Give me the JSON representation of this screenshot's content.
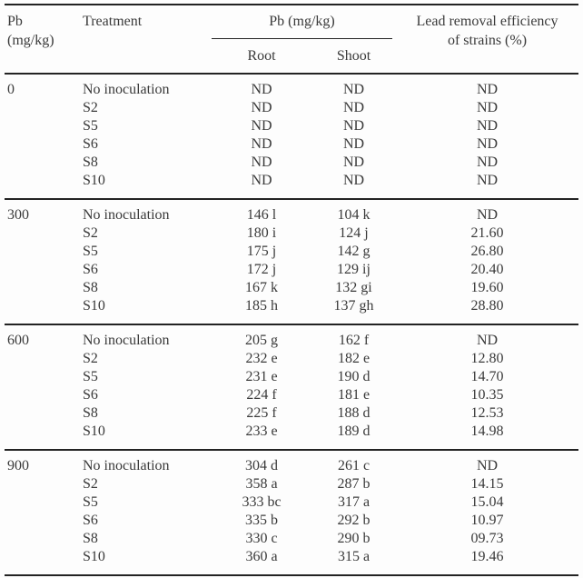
{
  "table": {
    "header": {
      "pb_level_line1": "Pb",
      "pb_level_line2": "(mg/kg)",
      "treatment": "Treatment",
      "pb_tissue_span": "Pb (mg/kg)",
      "root": "Root",
      "shoot": "Shoot",
      "efficiency_line1": "Lead removal efficiency",
      "efficiency_line2": "of strains (%)"
    },
    "groups": [
      {
        "pb": "0",
        "rows": [
          {
            "treatment": "No inoculation",
            "root": "ND",
            "shoot": "ND",
            "eff": "ND"
          },
          {
            "treatment": "S2",
            "root": "ND",
            "shoot": "ND",
            "eff": "ND"
          },
          {
            "treatment": "S5",
            "root": "ND",
            "shoot": "ND",
            "eff": "ND"
          },
          {
            "treatment": "S6",
            "root": "ND",
            "shoot": "ND",
            "eff": "ND"
          },
          {
            "treatment": "S8",
            "root": "ND",
            "shoot": "ND",
            "eff": "ND"
          },
          {
            "treatment": "S10",
            "root": "ND",
            "shoot": "ND",
            "eff": "ND"
          }
        ]
      },
      {
        "pb": "300",
        "rows": [
          {
            "treatment": "No inoculation",
            "root": "146 l",
            "shoot": "104 k",
            "eff": "ND"
          },
          {
            "treatment": "S2",
            "root": "180 i",
            "shoot": "124 j",
            "eff": "21.60"
          },
          {
            "treatment": "S5",
            "root": "175 j",
            "shoot": "142 g",
            "eff": "26.80"
          },
          {
            "treatment": "S6",
            "root": "172 j",
            "shoot": "129 ij",
            "eff": "20.40"
          },
          {
            "treatment": "S8",
            "root": "167 k",
            "shoot": "132 gi",
            "eff": "19.60"
          },
          {
            "treatment": "S10",
            "root": "185 h",
            "shoot": "137 gh",
            "eff": "28.80"
          }
        ]
      },
      {
        "pb": "600",
        "rows": [
          {
            "treatment": "No inoculation",
            "root": "205 g",
            "shoot": "162 f",
            "eff": "ND"
          },
          {
            "treatment": "S2",
            "root": "232 e",
            "shoot": "182 e",
            "eff": "12.80"
          },
          {
            "treatment": "S5",
            "root": "231 e",
            "shoot": "190 d",
            "eff": "14.70"
          },
          {
            "treatment": "S6",
            "root": "224 f",
            "shoot": "181 e",
            "eff": "10.35"
          },
          {
            "treatment": "S8",
            "root": "225 f",
            "shoot": "188 d",
            "eff": "12.53"
          },
          {
            "treatment": "S10",
            "root": "233 e",
            "shoot": "189 d",
            "eff": "14.98"
          }
        ]
      },
      {
        "pb": "900",
        "rows": [
          {
            "treatment": "No inoculation",
            "root": "304 d",
            "shoot": "261 c",
            "eff": "ND"
          },
          {
            "treatment": "S2",
            "root": "358 a",
            "shoot": "287 b",
            "eff": "14.15"
          },
          {
            "treatment": "S5",
            "root": "333 bc",
            "shoot": "317 a",
            "eff": "15.04"
          },
          {
            "treatment": "S6",
            "root": "335 b",
            "shoot": "292 b",
            "eff": "10.97"
          },
          {
            "treatment": "S8",
            "root": "330 c",
            "shoot": "290 b",
            "eff": "09.73"
          },
          {
            "treatment": "S10",
            "root": "360 a",
            "shoot": "315 a",
            "eff": "19.46"
          }
        ]
      }
    ],
    "colors": {
      "text": "#3a3a3a",
      "rule": "#232323",
      "background": "#fdfdfd"
    }
  }
}
